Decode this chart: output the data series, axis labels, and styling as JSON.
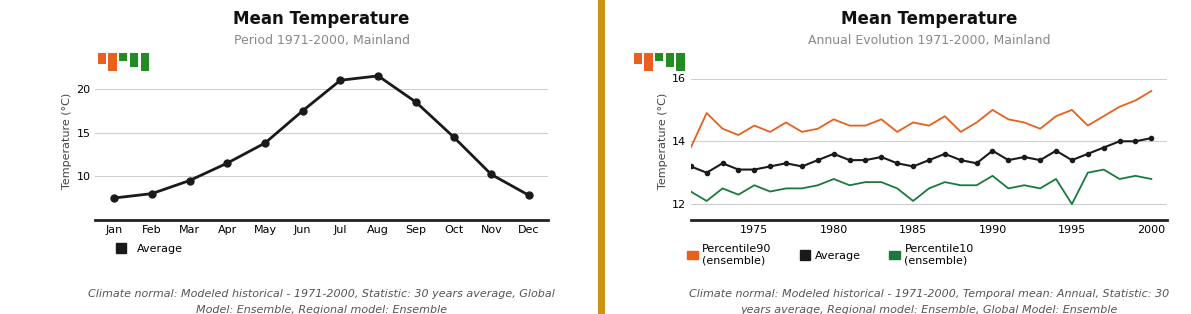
{
  "chart1": {
    "title": "Mean Temperature",
    "subtitle": "Period 1971-2000, Mainland",
    "months": [
      "Jan",
      "Feb",
      "Mar",
      "Apr",
      "May",
      "Jun",
      "Jul",
      "Aug",
      "Sep",
      "Oct",
      "Nov",
      "Dec"
    ],
    "avg": [
      7.5,
      8.0,
      9.5,
      11.5,
      13.8,
      17.5,
      21.0,
      21.5,
      18.5,
      14.5,
      10.2,
      7.8
    ],
    "line_color": "#1a1a1a",
    "marker": "o",
    "ylabel": "Temperature (°C)",
    "ylim": [
      5,
      23
    ],
    "yticks": [
      10,
      15,
      20
    ],
    "legend_label": "Average",
    "footnote1": "Climate normal: Modeled historical - 1971-2000, Statistic: 30 years average, Global",
    "footnote2": "Model: Ensemble, Regional model: Ensemble"
  },
  "chart2": {
    "title": "Mean Temperature",
    "subtitle": "Annual Evolution 1971-2000, Mainland",
    "years": [
      1971,
      1972,
      1973,
      1974,
      1975,
      1976,
      1977,
      1978,
      1979,
      1980,
      1981,
      1982,
      1983,
      1984,
      1985,
      1986,
      1987,
      1988,
      1989,
      1990,
      1991,
      1992,
      1993,
      1994,
      1995,
      1996,
      1997,
      1998,
      1999,
      2000
    ],
    "p90": [
      13.8,
      14.9,
      14.4,
      14.2,
      14.5,
      14.3,
      14.6,
      14.3,
      14.4,
      14.7,
      14.5,
      14.5,
      14.7,
      14.3,
      14.6,
      14.5,
      14.8,
      14.3,
      14.6,
      15.0,
      14.7,
      14.6,
      14.4,
      14.8,
      15.0,
      14.5,
      14.8,
      15.1,
      15.3,
      15.6
    ],
    "avg": [
      13.2,
      13.0,
      13.3,
      13.1,
      13.1,
      13.2,
      13.3,
      13.2,
      13.4,
      13.6,
      13.4,
      13.4,
      13.5,
      13.3,
      13.2,
      13.4,
      13.6,
      13.4,
      13.3,
      13.7,
      13.4,
      13.5,
      13.4,
      13.7,
      13.4,
      13.6,
      13.8,
      14.0,
      14.0,
      14.1
    ],
    "p10": [
      12.4,
      12.1,
      12.5,
      12.3,
      12.6,
      12.4,
      12.5,
      12.5,
      12.6,
      12.8,
      12.6,
      12.7,
      12.7,
      12.5,
      12.1,
      12.5,
      12.7,
      12.6,
      12.6,
      12.9,
      12.5,
      12.6,
      12.5,
      12.8,
      12.0,
      13.0,
      13.1,
      12.8,
      12.9,
      12.8
    ],
    "p90_color": "#e8601c",
    "avg_color": "#1a1a1a",
    "p10_color": "#1a7a3c",
    "ylabel": "Temperature (°C)",
    "ylim": [
      11.5,
      16.5
    ],
    "yticks": [
      12,
      14,
      16
    ],
    "xticks": [
      1975,
      1980,
      1985,
      1990,
      1995,
      2000
    ],
    "footnote1": "Climate normal: Modeled historical - 1971-2000, Temporal mean: Annual, Statistic: 30",
    "footnote2": "years average, Regional model: Ensemble, Global Model: Ensemble",
    "legend": [
      {
        "label": "Percentile90\n(ensemble)",
        "color": "#e8601c"
      },
      {
        "label": "Average",
        "color": "#1a1a1a"
      },
      {
        "label": "Percentile10\n(ensemble)",
        "color": "#1a7a3c"
      }
    ]
  },
  "divider_color": "#c8960c",
  "background_color": "#ffffff",
  "title_fontsize": 12,
  "subtitle_fontsize": 9,
  "footnote_fontsize": 8,
  "axis_label_fontsize": 8,
  "tick_fontsize": 8
}
